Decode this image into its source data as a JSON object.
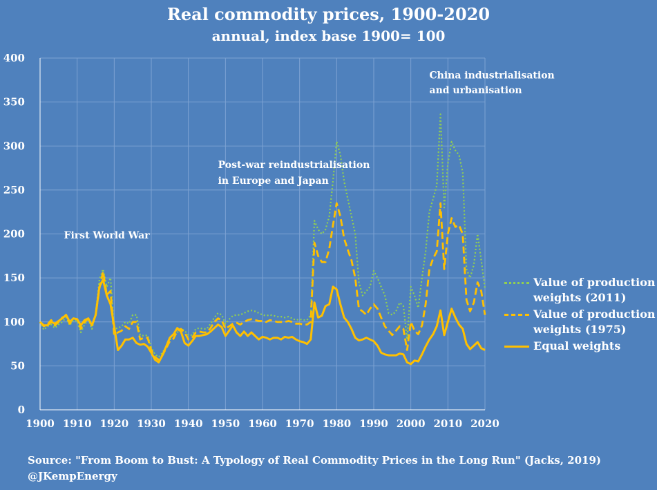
{
  "title": "Real commodity prices, 1900-2020",
  "subtitle": "annual, index base 1900= 100",
  "source_line": "Source: \"From Boom to Bust: A Typology of Real Commodity Prices in the Long Run\" (Jacks, 2019)",
  "handle": "@JKempEnergy",
  "colors": {
    "background": "#4f81bd",
    "line_2011": "#92d050",
    "line_1975": "#ffc000",
    "line_equal": "#ffc000",
    "grid": "#7ea3d3"
  },
  "chart_data": {
    "type": "line",
    "xlim": [
      1900,
      2020
    ],
    "ylim": [
      0,
      400
    ],
    "x_ticks": [
      "1900",
      "1910",
      "1920",
      "1930",
      "1940",
      "1950",
      "1960",
      "1970",
      "1980",
      "1990",
      "2000",
      "2010",
      "2020"
    ],
    "y_ticks": [
      "0",
      "50",
      "100",
      "150",
      "200",
      "250",
      "300",
      "350",
      "400"
    ],
    "grid": true,
    "legend_position": "right",
    "x": [
      1900,
      1901,
      1902,
      1903,
      1904,
      1905,
      1906,
      1907,
      1908,
      1909,
      1910,
      1911,
      1912,
      1913,
      1914,
      1915,
      1916,
      1917,
      1918,
      1919,
      1920,
      1921,
      1922,
      1923,
      1924,
      1925,
      1926,
      1927,
      1928,
      1929,
      1930,
      1931,
      1932,
      1933,
      1934,
      1935,
      1936,
      1937,
      1938,
      1939,
      1940,
      1941,
      1942,
      1943,
      1944,
      1945,
      1946,
      1947,
      1948,
      1949,
      1950,
      1951,
      1952,
      1953,
      1954,
      1955,
      1956,
      1957,
      1958,
      1959,
      1960,
      1961,
      1962,
      1963,
      1964,
      1965,
      1966,
      1967,
      1968,
      1969,
      1970,
      1971,
      1972,
      1973,
      1974,
      1975,
      1976,
      1977,
      1978,
      1979,
      1980,
      1981,
      1982,
      1983,
      1984,
      1985,
      1986,
      1987,
      1988,
      1989,
      1990,
      1991,
      1992,
      1993,
      1994,
      1995,
      1996,
      1997,
      1998,
      1999,
      2000,
      2001,
      2002,
      2003,
      2004,
      2005,
      2006,
      2007,
      2008,
      2009,
      2010,
      2011,
      2012,
      2013,
      2014,
      2015,
      2016,
      2017,
      2018,
      2019,
      2020
    ],
    "series": [
      {
        "name": "Value of production weights (2011)",
        "style": "dotted",
        "values": [
          100,
          91,
          95,
          97,
          93,
          97,
          100,
          105,
          96,
          102,
          101,
          88,
          97,
          102,
          92,
          110,
          148,
          160,
          140,
          150,
          92,
          93,
          95,
          100,
          98,
          108,
          108,
          85,
          84,
          85,
          71,
          63,
          60,
          65,
          72,
          80,
          82,
          88,
          92,
          90,
          85,
          85,
          92,
          93,
          92,
          92,
          98,
          105,
          110,
          108,
          98,
          103,
          107,
          108,
          108,
          110,
          112,
          113,
          112,
          110,
          108,
          107,
          108,
          107,
          106,
          106,
          105,
          106,
          104,
          102,
          103,
          102,
          102,
          108,
          215,
          205,
          200,
          205,
          220,
          260,
          305,
          290,
          260,
          240,
          220,
          200,
          145,
          130,
          135,
          140,
          158,
          150,
          140,
          130,
          110,
          108,
          112,
          122,
          118,
          80,
          140,
          130,
          116,
          150,
          180,
          225,
          240,
          255,
          336,
          230,
          280,
          305,
          295,
          290,
          270,
          160,
          150,
          165,
          200,
          170,
          138
        ]
      },
      {
        "name": "Value of production weights (1975)",
        "style": "dashed",
        "values": [
          100,
          95,
          97,
          102,
          96,
          100,
          105,
          107,
          98,
          104,
          103,
          92,
          100,
          104,
          96,
          108,
          138,
          157,
          131,
          135,
          85,
          88,
          90,
          95,
          92,
          100,
          100,
          80,
          82,
          82,
          68,
          60,
          57,
          62,
          70,
          78,
          81,
          90,
          92,
          88,
          80,
          82,
          88,
          89,
          88,
          88,
          93,
          100,
          104,
          102,
          92,
          95,
          98,
          99,
          97,
          100,
          102,
          103,
          102,
          101,
          101,
          100,
          102,
          101,
          100,
          100,
          100,
          101,
          100,
          98,
          98,
          97,
          97,
          100,
          190,
          175,
          168,
          168,
          183,
          210,
          235,
          220,
          195,
          182,
          170,
          150,
          115,
          112,
          108,
          115,
          120,
          115,
          105,
          95,
          90,
          85,
          90,
          95,
          92,
          68,
          100,
          90,
          86,
          96,
          120,
          160,
          172,
          180,
          235,
          160,
          200,
          218,
          208,
          210,
          200,
          125,
          112,
          122,
          145,
          135,
          108
        ]
      },
      {
        "name": "Equal weights",
        "style": "solid",
        "values": [
          100,
          96,
          96,
          100,
          98,
          101,
          104,
          108,
          100,
          104,
          103,
          96,
          102,
          104,
          96,
          108,
          140,
          148,
          130,
          120,
          95,
          68,
          73,
          80,
          80,
          82,
          76,
          74,
          75,
          72,
          65,
          57,
          54,
          62,
          72,
          82,
          86,
          93,
          89,
          76,
          73,
          78,
          84,
          84,
          85,
          86,
          89,
          93,
          97,
          94,
          84,
          90,
          96,
          88,
          84,
          89,
          84,
          88,
          84,
          80,
          83,
          82,
          80,
          82,
          82,
          80,
          83,
          82,
          83,
          80,
          78,
          77,
          75,
          80,
          122,
          105,
          107,
          118,
          120,
          140,
          137,
          120,
          105,
          100,
          92,
          82,
          79,
          80,
          82,
          80,
          78,
          73,
          65,
          63,
          62,
          62,
          62,
          64,
          63,
          54,
          52,
          56,
          55,
          63,
          72,
          80,
          86,
          95,
          113,
          85,
          100,
          115,
          105,
          97,
          92,
          75,
          69,
          73,
          77,
          70,
          68
        ]
      }
    ],
    "annotations": [
      {
        "text": "First World War",
        "x": 1918,
        "y": 195
      },
      {
        "text": "Post-war reindustrialisation",
        "x": 1948,
        "y": 275
      },
      {
        "text": "in Europe and Japan",
        "x": 1948,
        "y": 257
      },
      {
        "text": "China industrialisation",
        "x": 2005,
        "y": 377
      },
      {
        "text": "and urbanisation",
        "x": 2005,
        "y": 360
      }
    ]
  }
}
